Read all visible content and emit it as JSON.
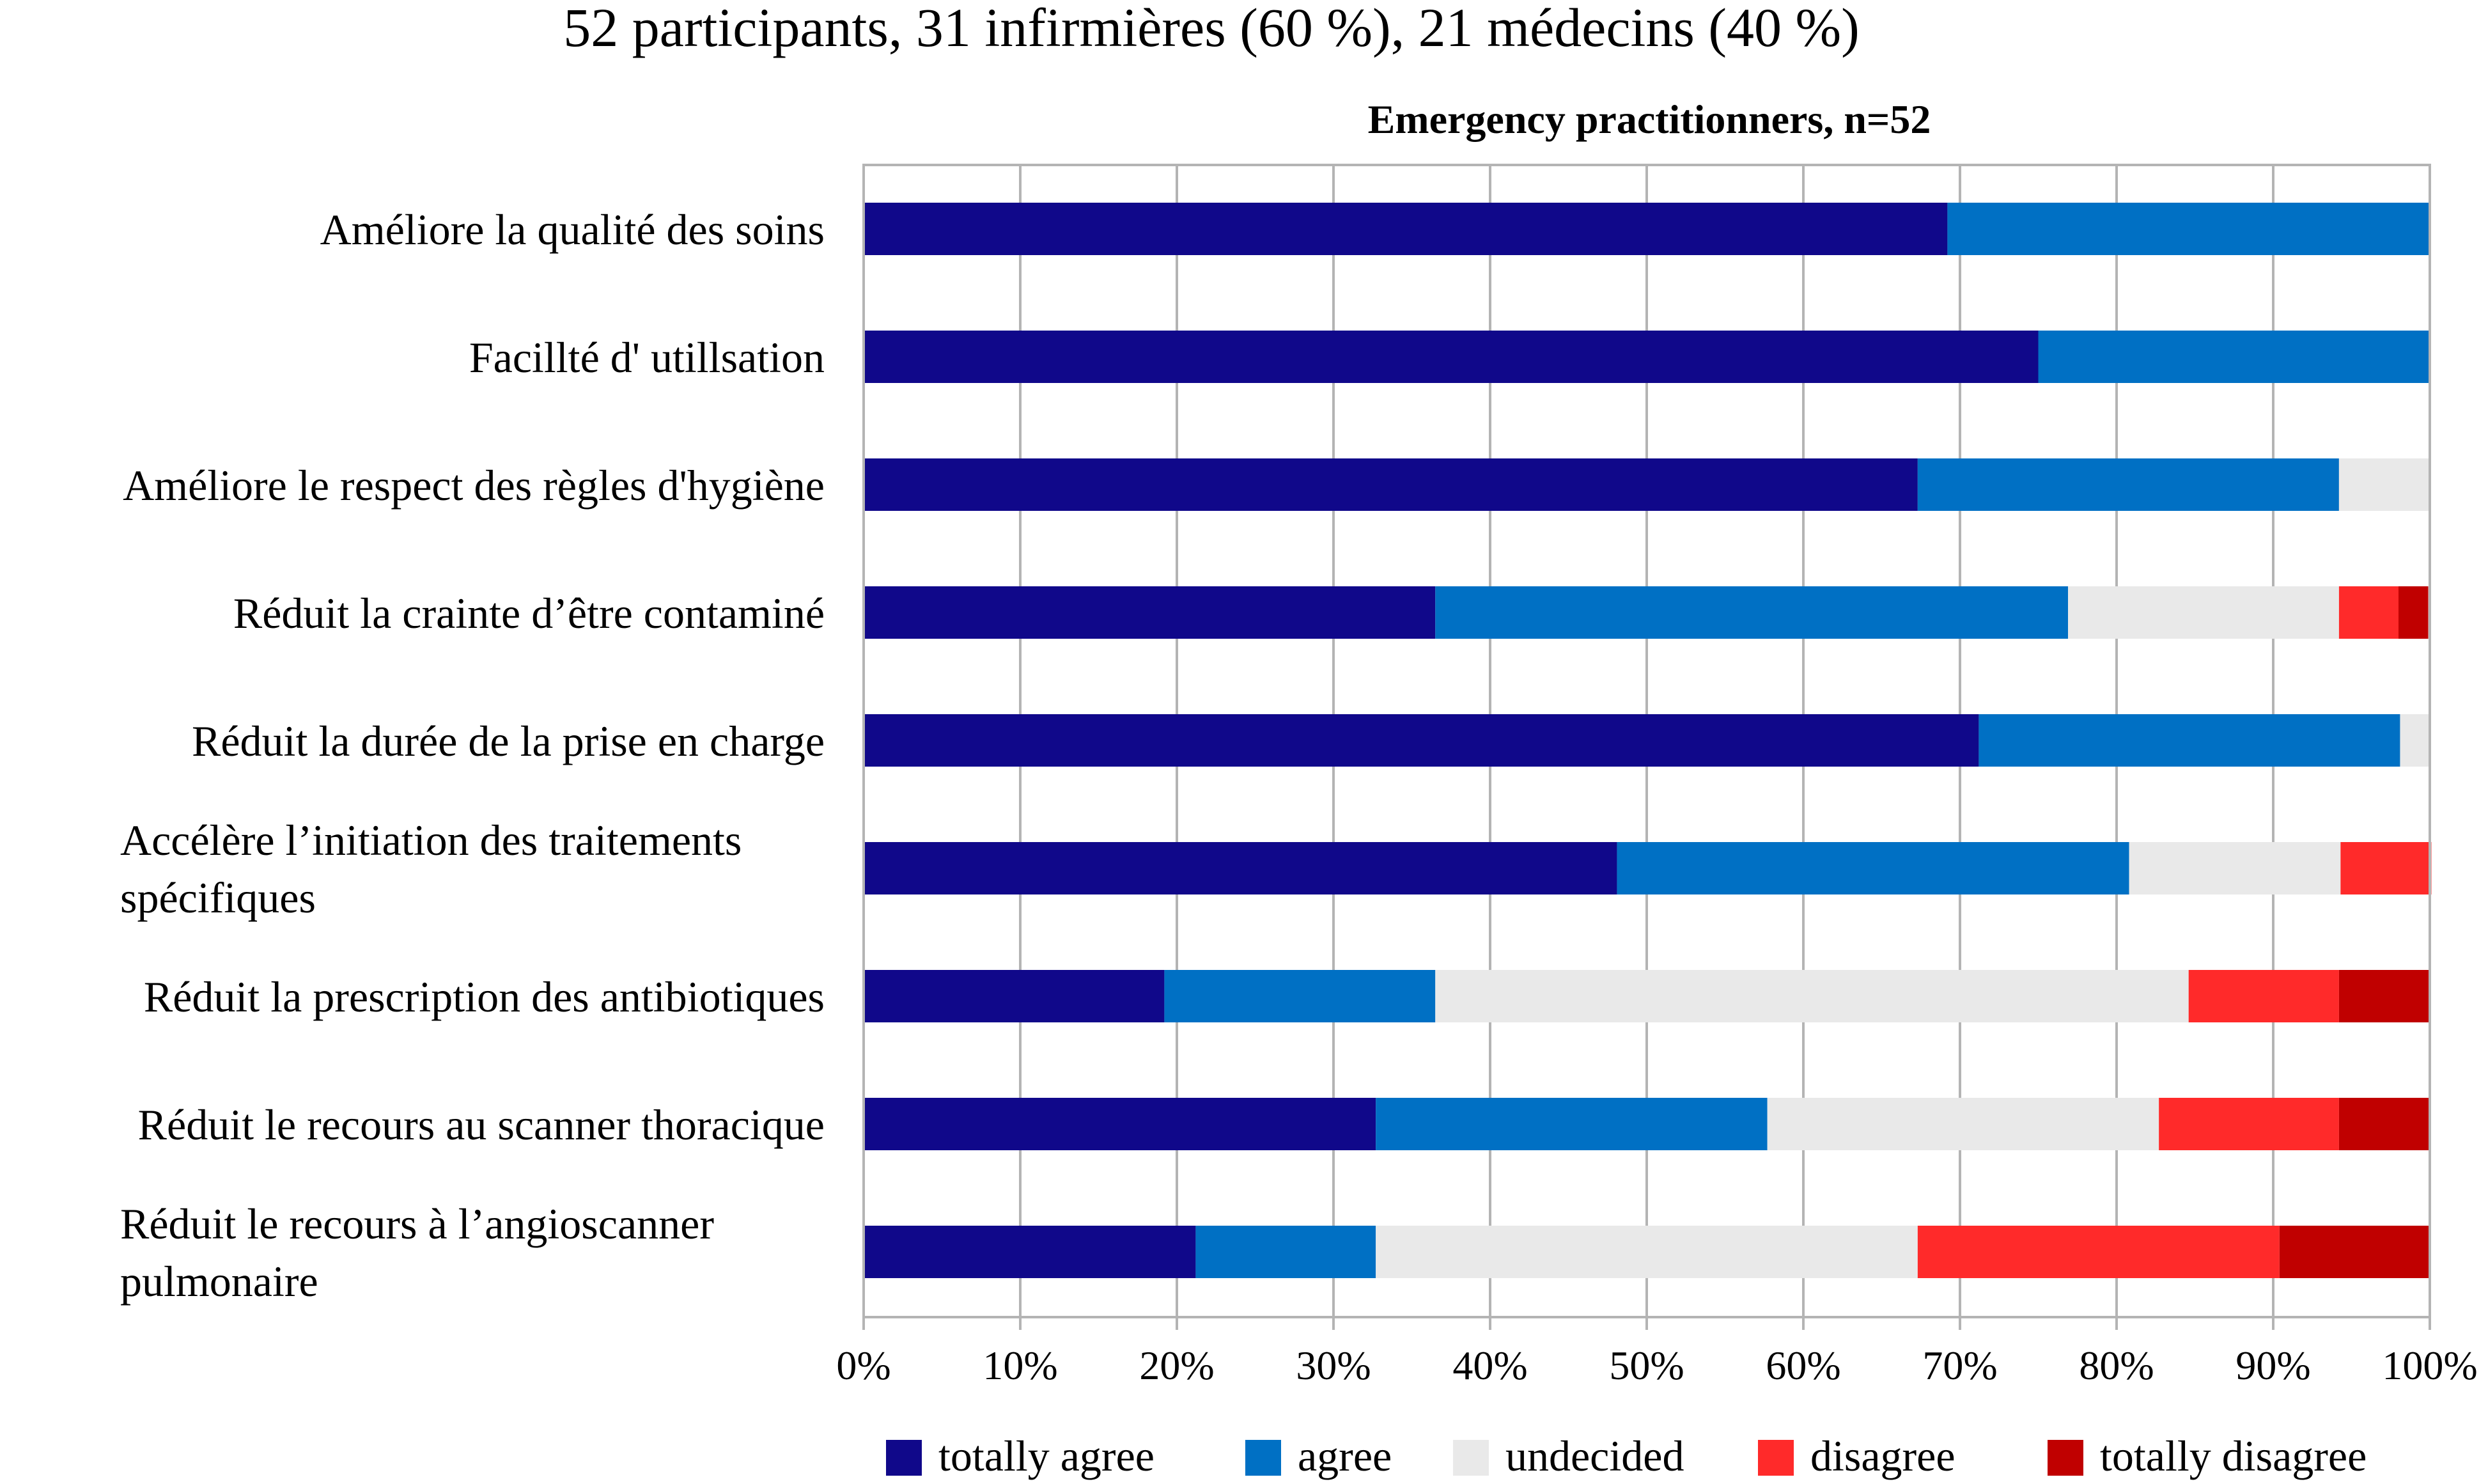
{
  "header": {
    "title": "52 participants, 31 infirmières (60 %), 21 médecins (40 %)",
    "subtitle": "Emergency practitionners, n=52"
  },
  "chart_data": {
    "type": "bar",
    "orientation": "horizontal",
    "stacked": "percent",
    "title": "52 participants, 31 infirmières (60 %), 21 médecins (40 %)",
    "subtitle": "Emergency practitionners, n=52",
    "xlabel": "",
    "ylabel": "",
    "xlim": [
      0,
      100
    ],
    "x_ticks": [
      "0%",
      "10%",
      "20%",
      "30%",
      "40%",
      "50%",
      "60%",
      "70%",
      "80%",
      "90%",
      "100%"
    ],
    "grid": true,
    "legend_position": "bottom",
    "categories": [
      [
        "Améliore la qualité des soins"
      ],
      [
        "Facillté d' utillsation"
      ],
      [
        "Améliore le respect des règles d'hygiène"
      ],
      [
        "Réduit la crainte d’être contaminé"
      ],
      [
        "Réduit la durée de la prise en charge"
      ],
      [
        "Accélère l’initiation des traitements",
        "spécifiques"
      ],
      [
        "Réduit la prescription des antibiotiques"
      ],
      [
        "Réduit le recours au scanner thoracique"
      ],
      [
        "Réduit le recours à l’angioscanner",
        "pulmonaire"
      ]
    ],
    "series": [
      {
        "name": "totally agree",
        "color": "#10088a",
        "values": [
          69.2,
          75.0,
          67.3,
          36.5,
          71.2,
          48.1,
          19.2,
          32.7,
          21.2
        ]
      },
      {
        "name": "agree",
        "color": "#0070c4",
        "values": [
          30.8,
          25.0,
          26.9,
          40.4,
          26.9,
          32.7,
          17.3,
          25.0,
          11.5
        ]
      },
      {
        "name": "undecided",
        "color": "#e9e9e9",
        "values": [
          0,
          0,
          5.8,
          17.3,
          1.9,
          13.5,
          48.1,
          25.0,
          34.6
        ]
      },
      {
        "name": "disagree",
        "color": "#ff2a2a",
        "values": [
          0,
          0,
          0,
          3.8,
          0,
          5.8,
          9.6,
          11.5,
          23.1
        ]
      },
      {
        "name": "totally disagree",
        "color": "#c00000",
        "values": [
          0,
          0,
          0,
          1.9,
          0,
          0,
          5.8,
          5.8,
          9.6
        ]
      }
    ]
  }
}
